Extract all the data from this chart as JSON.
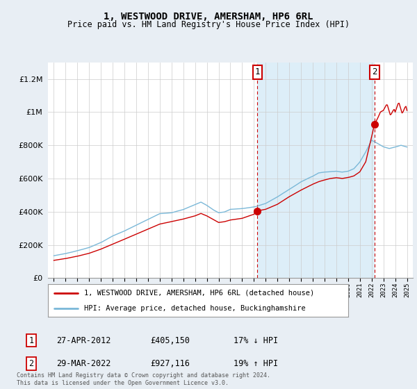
{
  "title": "1, WESTWOOD DRIVE, AMERSHAM, HP6 6RL",
  "subtitle": "Price paid vs. HM Land Registry's House Price Index (HPI)",
  "hpi_color": "#7ab8d8",
  "price_color": "#cc0000",
  "shade_color": "#ddeef8",
  "background_color": "#e8eef4",
  "plot_bg_color": "#ffffff",
  "ylim": [
    0,
    1300000
  ],
  "yticks": [
    0,
    200000,
    400000,
    600000,
    800000,
    1000000,
    1200000
  ],
  "sale1_date": "27-APR-2012",
  "sale1_price": 405150,
  "sale1_hpi": "17% ↓ HPI",
  "sale2_date": "29-MAR-2022",
  "sale2_price": 927116,
  "sale2_hpi": "19% ↑ HPI",
  "footnote": "Contains HM Land Registry data © Crown copyright and database right 2024.\nThis data is licensed under the Open Government Licence v3.0.",
  "legend_label1": "1, WESTWOOD DRIVE, AMERSHAM, HP6 6RL (detached house)",
  "legend_label2": "HPI: Average price, detached house, Buckinghamshire",
  "sale1_x": 2012.3,
  "sale2_x": 2022.25,
  "xmin": 1994.5,
  "xmax": 2025.5
}
